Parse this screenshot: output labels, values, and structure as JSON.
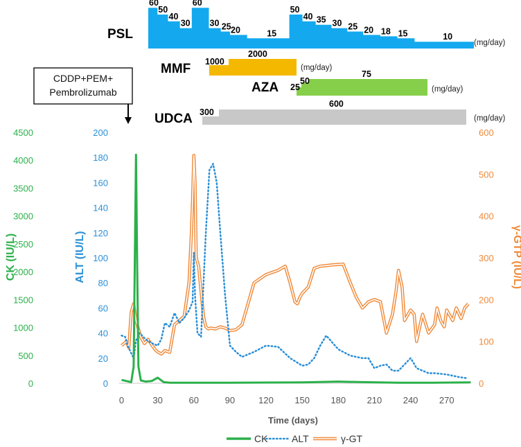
{
  "chart_data": {
    "type": "line",
    "xlabel": "Time (days)",
    "x_ticks": [
      0,
      30,
      60,
      90,
      120,
      150,
      180,
      210,
      240,
      270
    ],
    "xlim": [
      -2,
      288
    ],
    "axes": {
      "ck": {
        "label": "CK (IU/L)",
        "ylim": [
          0,
          4500
        ],
        "ticks": [
          0,
          500,
          1000,
          1500,
          2000,
          2500,
          3000,
          3500,
          4000,
          4500
        ],
        "color": "#2bb04a"
      },
      "alt": {
        "label": "ALT (IU/L)",
        "ylim": [
          0,
          200
        ],
        "ticks": [
          0,
          20,
          40,
          60,
          80,
          100,
          120,
          140,
          160,
          180,
          200
        ],
        "color": "#2a8fd6"
      },
      "gt": {
        "label": "γ-GTP (IU/L)",
        "ylim": [
          0,
          600
        ],
        "ticks": [
          0,
          100,
          200,
          300,
          400,
          500,
          600
        ],
        "color": "#ef8a3a"
      }
    },
    "series": [
      {
        "name": "CK",
        "axis": "ck",
        "style": "solid",
        "x": [
          0,
          4,
          8,
          10,
          11,
          12,
          13,
          14,
          16,
          20,
          25,
          30,
          35,
          40,
          60,
          90,
          150,
          180,
          200,
          230,
          260,
          290
        ],
        "values": [
          60,
          40,
          20,
          300,
          2200,
          4100,
          2000,
          300,
          50,
          30,
          40,
          100,
          20,
          10,
          10,
          10,
          15,
          30,
          20,
          10,
          10,
          15
        ]
      },
      {
        "name": "ALT",
        "axis": "alt",
        "style": "dotted",
        "x": [
          0,
          3,
          5,
          8,
          10,
          12,
          15,
          20,
          25,
          30,
          33,
          36,
          40,
          44,
          48,
          52,
          56,
          59,
          60,
          61,
          63,
          66,
          70,
          73,
          76,
          79,
          82,
          86,
          90,
          95,
          100,
          110,
          120,
          130,
          140,
          145,
          150,
          155,
          160,
          165,
          170,
          180,
          190,
          200,
          205,
          210,
          215,
          220,
          225,
          230,
          235,
          240,
          242,
          245,
          250,
          255,
          260,
          270,
          280,
          287
        ],
        "values": [
          38,
          37,
          30,
          24,
          20,
          34,
          40,
          35,
          32,
          30,
          35,
          48,
          45,
          56,
          48,
          52,
          58,
          65,
          104,
          70,
          40,
          37,
          120,
          170,
          175,
          160,
          120,
          70,
          30,
          25,
          21,
          25,
          30,
          29,
          20,
          17,
          14,
          15,
          20,
          30,
          38,
          27,
          22,
          20,
          20,
          12,
          14,
          15,
          10,
          10,
          15,
          20,
          17,
          12,
          10,
          8,
          8,
          7,
          5,
          4
        ]
      },
      {
        "name": "γ-GT",
        "axis": "gt",
        "style": "double",
        "x": [
          0,
          4,
          6,
          8,
          10,
          12,
          14,
          16,
          19,
          22,
          25,
          28,
          30,
          33,
          36,
          40,
          44,
          48,
          52,
          56,
          58,
          59,
          60,
          61,
          62,
          64,
          66,
          68,
          70,
          72,
          74,
          78,
          82,
          86,
          90,
          95,
          100,
          110,
          120,
          130,
          136,
          140,
          144,
          146,
          148,
          150,
          155,
          160,
          165,
          175,
          184,
          190,
          195,
          200,
          205,
          210,
          215,
          220,
          225,
          228,
          230,
          233,
          235,
          240,
          243,
          245,
          248,
          250,
          255,
          260,
          262,
          265,
          268,
          270,
          272,
          275,
          278,
          282,
          285,
          288
        ],
        "values": [
          90,
          100,
          85,
          170,
          190,
          150,
          130,
          110,
          95,
          105,
          92,
          80,
          75,
          70,
          78,
          74,
          140,
          150,
          160,
          240,
          360,
          440,
          545,
          480,
          300,
          280,
          220,
          160,
          135,
          130,
          132,
          130,
          135,
          132,
          126,
          128,
          140,
          240,
          260,
          270,
          280,
          240,
          195,
          190,
          205,
          215,
          230,
          275,
          280,
          283,
          285,
          240,
          205,
          180,
          195,
          200,
          195,
          120,
          165,
          220,
          270,
          230,
          150,
          175,
          165,
          100,
          140,
          165,
          120,
          140,
          180,
          150,
          135,
          175,
          165,
          150,
          180,
          155,
          180,
          190
        ]
      }
    ],
    "legend": [
      "CK",
      "ALT",
      "γ-GT"
    ]
  },
  "treatment": {
    "psl": {
      "label": "PSL",
      "unit": "(mg/day)",
      "steps": [
        {
          "start": 0,
          "end": 7,
          "value": 60
        },
        {
          "start": 7,
          "end": 15,
          "value": 50
        },
        {
          "start": 15,
          "end": 24,
          "value": 40
        },
        {
          "start": 24,
          "end": 33,
          "value": 30
        },
        {
          "start": 33,
          "end": 46,
          "value": 60
        },
        {
          "start": 46,
          "end": 55,
          "value": 30
        },
        {
          "start": 55,
          "end": 62,
          "value": 25
        },
        {
          "start": 62,
          "end": 75,
          "value": 20
        },
        {
          "start": 75,
          "end": 107,
          "value": 15
        },
        {
          "start": 107,
          "end": 117,
          "value": 50
        },
        {
          "start": 117,
          "end": 127,
          "value": 40
        },
        {
          "start": 127,
          "end": 139,
          "value": 35
        },
        {
          "start": 139,
          "end": 151,
          "value": 30
        },
        {
          "start": 151,
          "end": 163,
          "value": 25
        },
        {
          "start": 163,
          "end": 176,
          "value": 20
        },
        {
          "start": 176,
          "end": 189,
          "value": 18
        },
        {
          "start": 189,
          "end": 202,
          "value": 15
        },
        {
          "start": 202,
          "end": 247,
          "value": 10
        }
      ]
    },
    "mmf": {
      "label": "MMF",
      "unit": "(mg/day)",
      "dose_start": "1000",
      "dose_main": "2000"
    },
    "aza": {
      "label": "AZA",
      "unit": "(mg/day)",
      "dose_start": "25",
      "dose_mid": "50",
      "dose_main": "75"
    },
    "udca": {
      "label": "UDCA",
      "unit": "(mg/day)",
      "dose_start": "300",
      "dose_main": "600"
    },
    "therapy_box": {
      "line1": "CDDP+PEM+",
      "line2": "Pembrolizumab"
    }
  }
}
